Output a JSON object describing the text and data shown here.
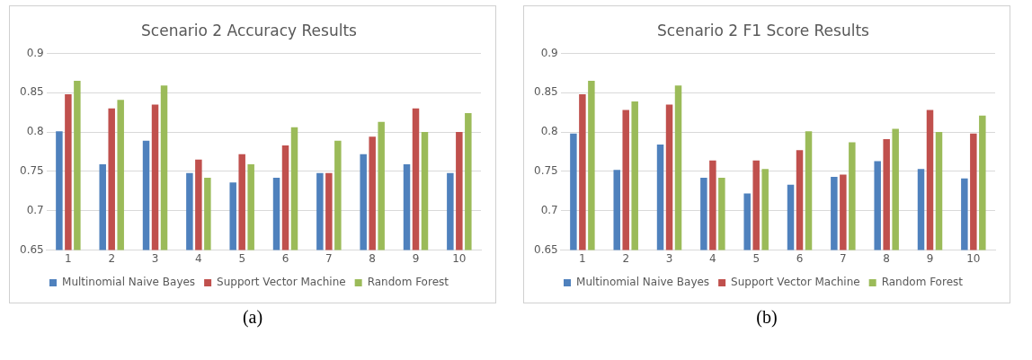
{
  "chart_data": [
    {
      "type": "bar",
      "title": "Scenario 2 Accuracy Results",
      "categories": [
        "1",
        "2",
        "3",
        "4",
        "5",
        "6",
        "7",
        "8",
        "9",
        "10"
      ],
      "series": [
        {
          "name": "Multinomial Naive Bayes",
          "color": "#4f81bd",
          "values": [
            0.801,
            0.759,
            0.789,
            0.748,
            0.736,
            0.742,
            0.748,
            0.772,
            0.759,
            0.748
          ]
        },
        {
          "name": "Support Vector Machine",
          "color": "#c0504d",
          "values": [
            0.848,
            0.83,
            0.835,
            0.765,
            0.772,
            0.783,
            0.748,
            0.794,
            0.83,
            0.8
          ]
        },
        {
          "name": "Random Forest",
          "color": "#9bbb59",
          "values": [
            0.865,
            0.841,
            0.859,
            0.742,
            0.759,
            0.806,
            0.789,
            0.813,
            0.8,
            0.824
          ]
        }
      ],
      "ylim": [
        0.65,
        0.9
      ],
      "yticks": [
        0.65,
        0.7,
        0.75,
        0.8,
        0.85,
        0.9
      ],
      "grid": "y",
      "legend": "bottom",
      "annotations": [
        "(a)"
      ]
    },
    {
      "type": "bar",
      "title": "Scenario 2 F1 Score Results",
      "categories": [
        "1",
        "2",
        "3",
        "4",
        "5",
        "6",
        "7",
        "8",
        "9",
        "10"
      ],
      "series": [
        {
          "name": "Multinomial Naive Bayes",
          "color": "#4f81bd",
          "values": [
            0.798,
            0.752,
            0.784,
            0.742,
            0.722,
            0.733,
            0.743,
            0.763,
            0.753,
            0.741
          ]
        },
        {
          "name": "Support Vector Machine",
          "color": "#c0504d",
          "values": [
            0.848,
            0.828,
            0.835,
            0.764,
            0.764,
            0.777,
            0.746,
            0.791,
            0.828,
            0.798
          ]
        },
        {
          "name": "Random Forest",
          "color": "#9bbb59",
          "values": [
            0.865,
            0.839,
            0.859,
            0.742,
            0.753,
            0.801,
            0.787,
            0.804,
            0.8,
            0.821
          ]
        }
      ],
      "ylim": [
        0.65,
        0.9
      ],
      "yticks": [
        0.65,
        0.7,
        0.75,
        0.8,
        0.85,
        0.9
      ],
      "grid": "y",
      "legend": "bottom",
      "annotations": [
        "(b)"
      ]
    }
  ]
}
